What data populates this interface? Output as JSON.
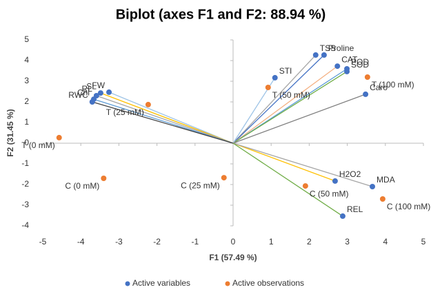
{
  "chart_data": {
    "type": "scatter",
    "title": "Biplot (axes F1 and F2: 88.94 %)",
    "x_label": "F1 (57.49 %)",
    "y_label": "F2 (31.45 %)",
    "xlim": [
      -5,
      5
    ],
    "xticks": [
      -5,
      -4,
      -3,
      -2,
      -1,
      0,
      1,
      2,
      3,
      4,
      5
    ],
    "ylim": [
      -4,
      5
    ],
    "yticks": [
      -4,
      -3,
      -2,
      -1,
      0,
      1,
      2,
      3,
      4,
      5
    ],
    "legend": "bottom",
    "series": [
      {
        "name": "Active variables",
        "color": "#4472c4",
        "vectors": true,
        "labels": [
          "TSS",
          "Proline",
          "CAT",
          "POD",
          "SOD",
          "STI",
          "Caro",
          "FW",
          "SL",
          "RL",
          "Chl",
          "RWC",
          "H2O2",
          "MDA",
          "REL"
        ],
        "x": [
          2.17,
          2.39,
          2.74,
          2.99,
          2.99,
          1.1,
          3.48,
          -3.26,
          -3.48,
          -3.59,
          -3.66,
          -3.7,
          2.68,
          3.66,
          2.88
        ],
        "values": [
          4.27,
          4.27,
          3.73,
          3.6,
          3.47,
          3.17,
          2.37,
          2.47,
          2.43,
          2.3,
          2.13,
          2.0,
          -1.83,
          -2.1,
          -3.53
        ],
        "vector_colors": [
          "#a5a5a5",
          "#4472c4",
          "#f4b183",
          "#5b9bd5",
          "#70ad47",
          "#9dc3e6",
          "#7f7f7f",
          "#9dc3e6",
          "#ffc000",
          "#a5a5a5",
          "#5b9bd5",
          "#404040",
          "#ffc000",
          "#a5a5a5",
          "#70ad47"
        ]
      },
      {
        "name": "Active observations",
        "color": "#ed7d31",
        "vectors": false,
        "labels": [
          "T (25 mM)",
          "T (0 mM)",
          "C (0 mM)",
          "C (25 mM)",
          "T (50 mM)",
          "T (100 mM)",
          "C (50 mM)",
          "C (100 mM)"
        ],
        "x": [
          -2.23,
          -4.57,
          -3.4,
          -0.24,
          0.92,
          3.53,
          1.9,
          3.93
        ],
        "values": [
          1.87,
          0.27,
          -1.7,
          -1.67,
          2.7,
          3.2,
          -2.07,
          -2.7
        ]
      }
    ]
  }
}
